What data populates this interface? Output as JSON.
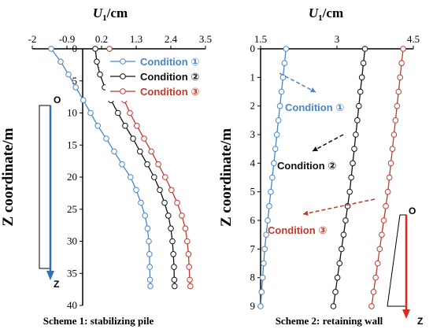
{
  "chart_data": [
    {
      "type": "line",
      "caption": "Scheme 1: stabilizing pile",
      "xlabel_var": "U",
      "xlabel_sub": "1",
      "xlabel_unit": "/cm",
      "ylabel": "Z coordinate/m",
      "xticks": [
        "-2",
        "-0.9",
        "0.2",
        "1.3",
        "2.4",
        "3.5"
      ],
      "yticks": [
        "0",
        "5",
        "10",
        "15",
        "20",
        "25",
        "30",
        "35",
        "40"
      ],
      "xlim": [
        -2,
        3.5
      ],
      "ylim": [
        0,
        40
      ],
      "y_inverted": true,
      "x_axis_position": "top",
      "legend_position": "top-right",
      "orientation_marker": {
        "top": "O",
        "bottom": "Z",
        "color": "#2e6fb7"
      },
      "series": [
        {
          "name": "Condition ①",
          "color": "#4a86c7",
          "points": [
            [
              -1.4,
              0
            ],
            [
              -1.1,
              2
            ],
            [
              -0.85,
              4
            ],
            [
              -0.62,
              6
            ],
            [
              -0.38,
              8
            ],
            [
              -0.15,
              10
            ],
            [
              0.08,
              12
            ],
            [
              0.35,
              14
            ],
            [
              0.6,
              16
            ],
            [
              0.85,
              18
            ],
            [
              1.12,
              20
            ],
            [
              1.3,
              22
            ],
            [
              1.45,
              24
            ],
            [
              1.58,
              26
            ],
            [
              1.66,
              28
            ],
            [
              1.7,
              30
            ],
            [
              1.72,
              32
            ],
            [
              1.73,
              34
            ],
            [
              1.74,
              36
            ],
            [
              1.75,
              37
            ]
          ]
        },
        {
          "name": "Condition ②",
          "color": "#111111",
          "points": [
            [
              0,
              0
            ],
            [
              0.05,
              2
            ],
            [
              0.15,
              4
            ],
            [
              0.3,
              6
            ],
            [
              0.5,
              8
            ],
            [
              0.72,
              10
            ],
            [
              0.95,
              12
            ],
            [
              1.2,
              14
            ],
            [
              1.42,
              16
            ],
            [
              1.65,
              18
            ],
            [
              1.87,
              20
            ],
            [
              2.05,
              22
            ],
            [
              2.2,
              24
            ],
            [
              2.32,
              26
            ],
            [
              2.4,
              28
            ],
            [
              2.45,
              30
            ],
            [
              2.48,
              32
            ],
            [
              2.5,
              34
            ],
            [
              2.51,
              36
            ],
            [
              2.52,
              37
            ]
          ]
        },
        {
          "name": "Condition ③",
          "color": "#c0392b",
          "points": [
            [
              0.45,
              0
            ],
            [
              0.5,
              2
            ],
            [
              0.6,
              4
            ],
            [
              0.75,
              6
            ],
            [
              0.92,
              8
            ],
            [
              1.1,
              10
            ],
            [
              1.32,
              12
            ],
            [
              1.55,
              14
            ],
            [
              1.78,
              16
            ],
            [
              2.0,
              18
            ],
            [
              2.22,
              20
            ],
            [
              2.42,
              22
            ],
            [
              2.6,
              24
            ],
            [
              2.75,
              26
            ],
            [
              2.86,
              28
            ],
            [
              2.92,
              30
            ],
            [
              2.96,
              32
            ],
            [
              2.98,
              34
            ],
            [
              3.0,
              36
            ],
            [
              3.02,
              37
            ]
          ]
        }
      ]
    },
    {
      "type": "line",
      "caption": "Scheme 2: retaining wall",
      "xlabel_var": "U",
      "xlabel_sub": "1",
      "xlabel_unit": "/cm",
      "ylabel": "Z coordinate/m",
      "xticks": [
        "1.5",
        "3",
        "4.5"
      ],
      "yticks": [
        "0",
        "1",
        "2",
        "3",
        "4",
        "5",
        "6",
        "7",
        "8",
        "9"
      ],
      "xlim": [
        1.5,
        4.5
      ],
      "ylim": [
        0,
        9
      ],
      "y_inverted": true,
      "x_axis_position": "top",
      "orientation_marker": {
        "top": "O",
        "bottom": "Z",
        "color": "#e0281e"
      },
      "annotations": [
        {
          "text": "Condition ①",
          "color": "#4a86c7"
        },
        {
          "text": "Condition ②",
          "color": "#111111"
        },
        {
          "text": "Condition ③",
          "color": "#c0392b"
        }
      ],
      "series": [
        {
          "name": "Condition ①",
          "color": "#4a86c7",
          "points": [
            [
              2.0,
              0
            ],
            [
              1.97,
              0.5
            ],
            [
              1.94,
              1
            ],
            [
              1.91,
              1.5
            ],
            [
              1.88,
              2
            ],
            [
              1.85,
              2.5
            ],
            [
              1.82,
              3
            ],
            [
              1.79,
              3.5
            ],
            [
              1.76,
              4
            ],
            [
              1.73,
              4.5
            ],
            [
              1.7,
              5
            ],
            [
              1.67,
              5.5
            ],
            [
              1.64,
              6
            ],
            [
              1.61,
              6.5
            ],
            [
              1.58,
              7
            ],
            [
              1.56,
              7.5
            ],
            [
              1.54,
              8
            ],
            [
              1.52,
              8.5
            ],
            [
              1.5,
              9
            ]
          ]
        },
        {
          "name": "Condition ②",
          "color": "#111111",
          "points": [
            [
              3.55,
              0
            ],
            [
              3.52,
              0.5
            ],
            [
              3.49,
              1
            ],
            [
              3.46,
              1.5
            ],
            [
              3.43,
              2
            ],
            [
              3.4,
              2.5
            ],
            [
              3.37,
              3
            ],
            [
              3.34,
              3.5
            ],
            [
              3.31,
              4
            ],
            [
              3.28,
              4.5
            ],
            [
              3.25,
              5
            ],
            [
              3.21,
              5.5
            ],
            [
              3.17,
              6
            ],
            [
              3.13,
              6.5
            ],
            [
              3.09,
              7
            ],
            [
              3.05,
              7.5
            ],
            [
              3.01,
              8
            ],
            [
              2.97,
              8.5
            ],
            [
              2.93,
              9
            ]
          ]
        },
        {
          "name": "Condition ③",
          "color": "#c0392b",
          "points": [
            [
              4.3,
              0
            ],
            [
              4.27,
              0.5
            ],
            [
              4.24,
              1
            ],
            [
              4.21,
              1.5
            ],
            [
              4.18,
              2
            ],
            [
              4.15,
              2.5
            ],
            [
              4.12,
              3
            ],
            [
              4.09,
              3.5
            ],
            [
              4.06,
              4
            ],
            [
              4.03,
              4.5
            ],
            [
              4.0,
              5
            ],
            [
              3.96,
              5.5
            ],
            [
              3.92,
              6
            ],
            [
              3.88,
              6.5
            ],
            [
              3.84,
              7
            ],
            [
              3.8,
              7.5
            ],
            [
              3.76,
              8
            ],
            [
              3.72,
              8.5
            ],
            [
              3.68,
              9
            ]
          ]
        }
      ]
    }
  ]
}
